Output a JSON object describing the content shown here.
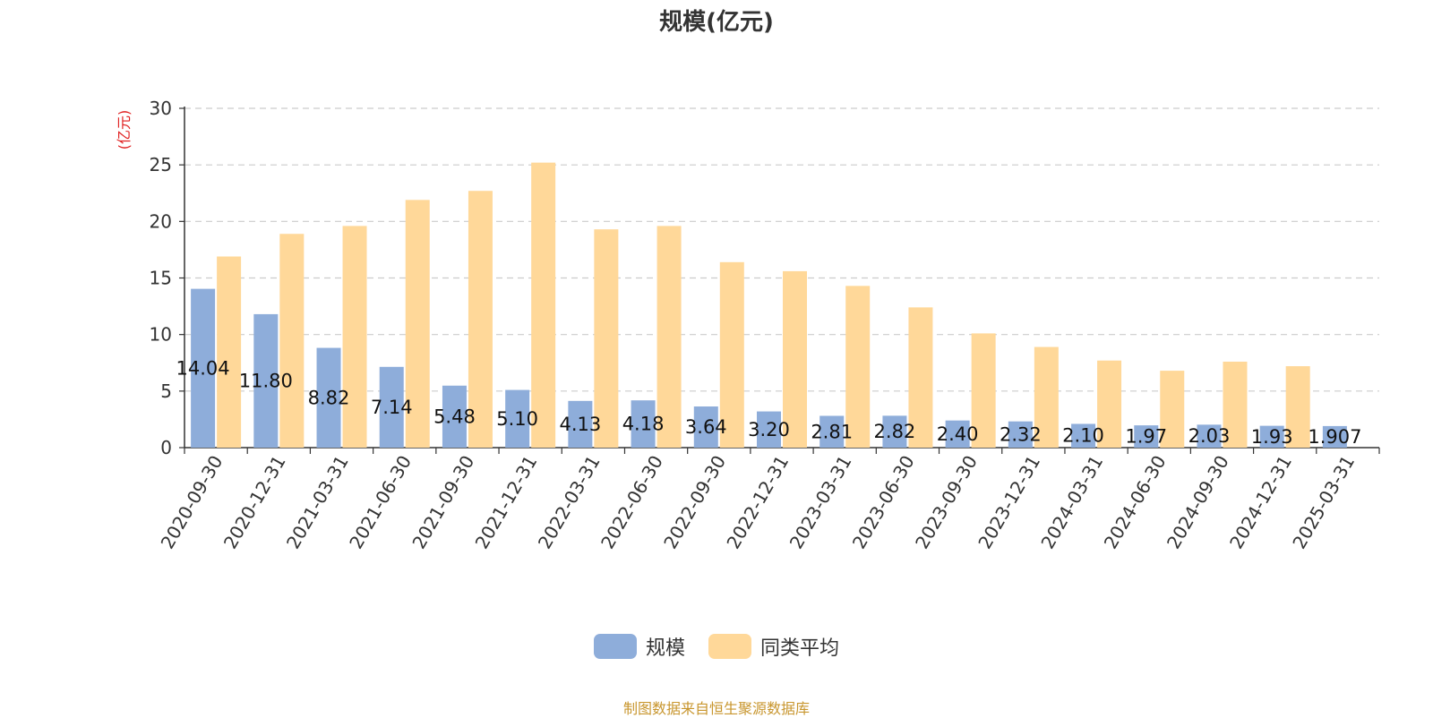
{
  "chart_data": {
    "type": "bar",
    "title": "规模(亿元)",
    "ylabel": "(亿元)",
    "xlabel": "",
    "ylim": [
      0,
      30
    ],
    "yticks": [
      0,
      5,
      10,
      15,
      20,
      25,
      30
    ],
    "grid": true,
    "legend_position": "bottom-center",
    "categories": [
      "2020-09-30",
      "2020-12-31",
      "2021-03-31",
      "2021-06-30",
      "2021-09-30",
      "2021-12-31",
      "2022-03-31",
      "2022-06-30",
      "2022-09-30",
      "2022-12-31",
      "2023-03-31",
      "2023-06-30",
      "2023-09-30",
      "2023-12-31",
      "2024-03-31",
      "2024-06-30",
      "2024-09-30",
      "2024-12-31",
      "2025-03-31"
    ],
    "series": [
      {
        "name": "规模",
        "color": "#8eadda",
        "values": [
          14.04,
          11.8,
          8.82,
          7.14,
          5.48,
          5.1,
          4.13,
          4.18,
          3.64,
          3.2,
          2.81,
          2.82,
          2.4,
          2.32,
          2.1,
          1.97,
          2.03,
          1.93,
          1.907
        ],
        "labels": [
          "14.04",
          "11.80",
          "8.82",
          "7.14",
          "5.48",
          "5.10",
          "4.13",
          "4.18",
          "3.64",
          "3.20",
          "2.81",
          "2.82",
          "2.40",
          "2.32",
          "2.10",
          "1.97",
          "2.03",
          "1.93",
          "1.907"
        ]
      },
      {
        "name": "同类平均",
        "color": "#ffd899",
        "values": [
          16.9,
          18.9,
          19.6,
          21.9,
          22.7,
          25.2,
          19.3,
          19.6,
          16.4,
          15.6,
          14.3,
          12.4,
          10.1,
          8.9,
          7.7,
          6.8,
          7.6,
          7.2,
          null
        ]
      }
    ]
  },
  "source_note": "制图数据来自恒生聚源数据库"
}
